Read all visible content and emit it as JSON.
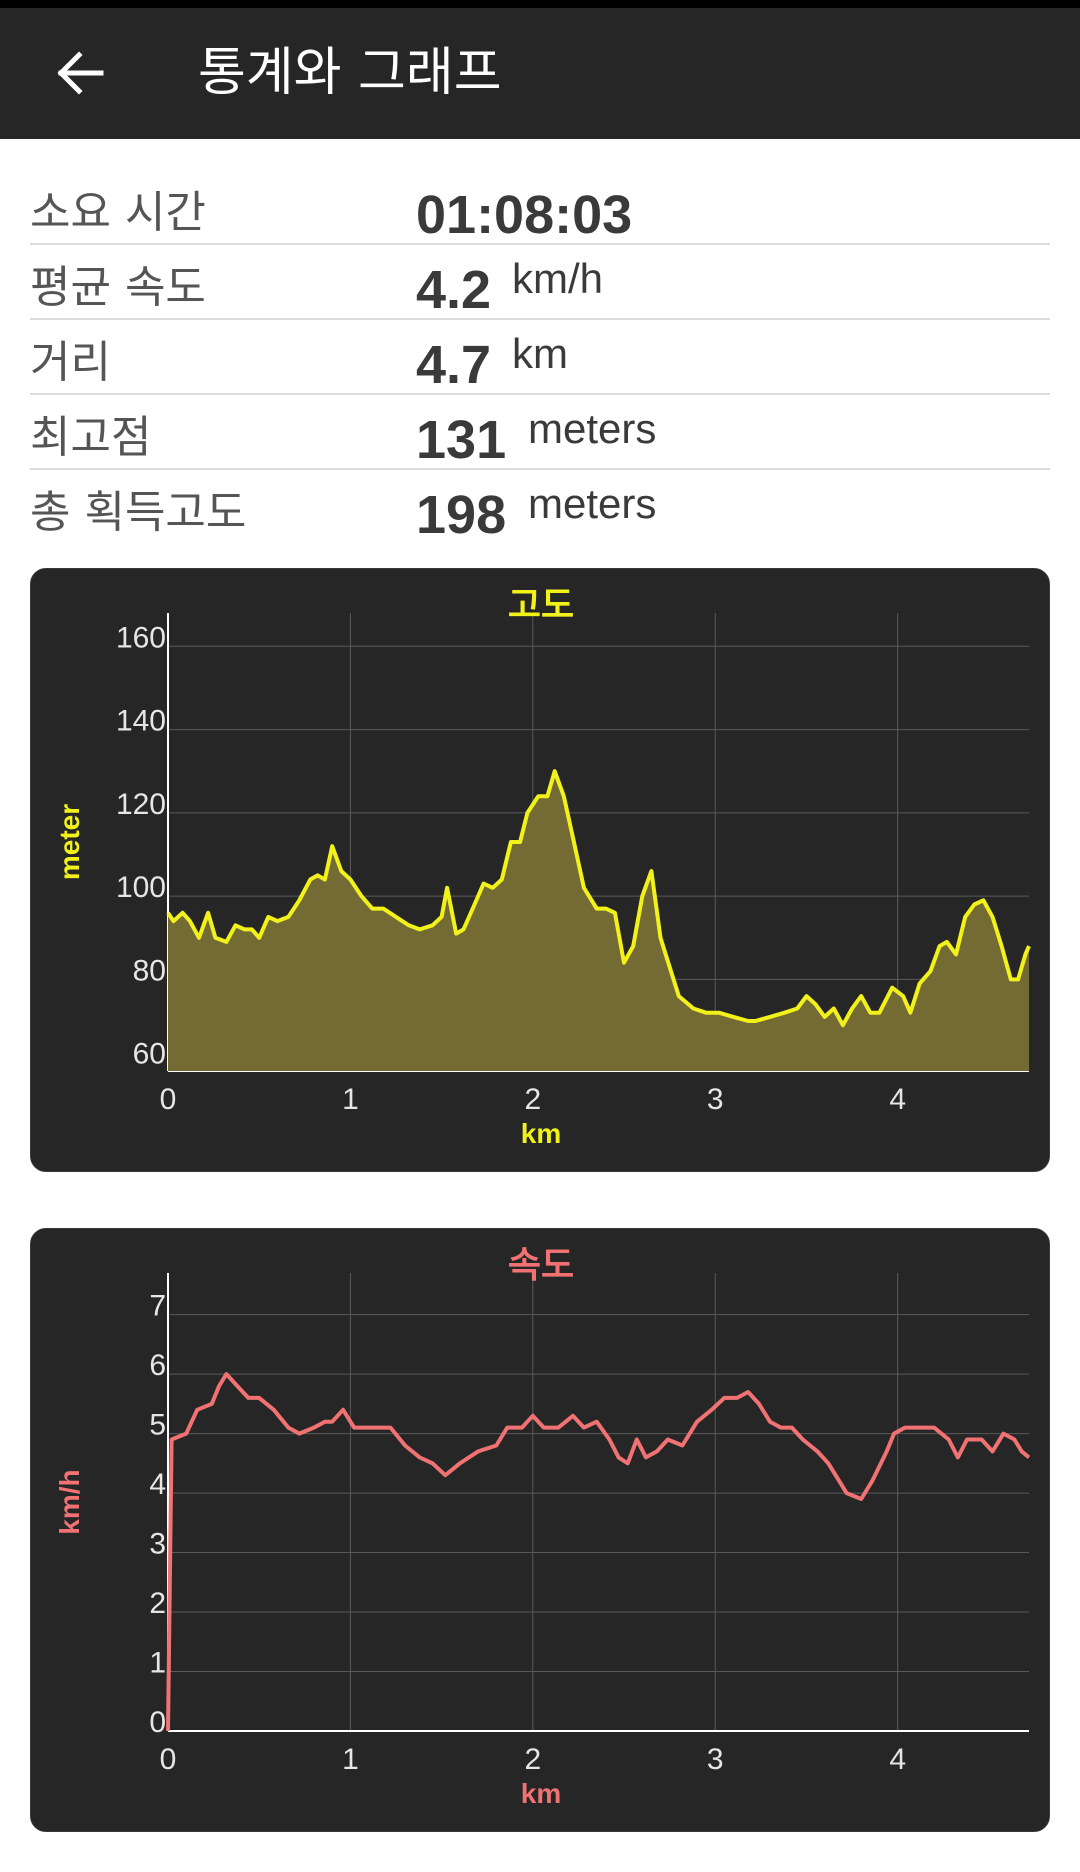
{
  "app_bar": {
    "title": "통계와 그래프"
  },
  "stats": [
    {
      "label": "소요 시간",
      "value": "01:08:03",
      "unit": ""
    },
    {
      "label": "평균 속도",
      "value": "4.2",
      "unit": "km/h"
    },
    {
      "label": "거리",
      "value": "4.7",
      "unit": "km"
    },
    {
      "label": "최고점",
      "value": "131",
      "unit": "meters"
    },
    {
      "label": "총 획득고도",
      "value": "198",
      "unit": "meters"
    }
  ],
  "colors": {
    "elevation": "#f2f21a",
    "elevation_fill": "#736b33",
    "speed": "#f07272",
    "card_bg": "#262626",
    "grid": "#5a5a5a"
  },
  "chart_data": [
    {
      "type": "area",
      "title": "고도",
      "xlabel": "km",
      "ylabel": "meter",
      "xlim": [
        0,
        4.72
      ],
      "ylim": [
        58,
        168
      ],
      "x_ticks": [
        0,
        1,
        2,
        3,
        4
      ],
      "y_ticks": [
        60,
        80,
        100,
        120,
        140,
        160
      ],
      "grid": true,
      "points": [
        [
          0,
          96
        ],
        [
          0.03,
          94
        ],
        [
          0.08,
          96
        ],
        [
          0.12,
          94
        ],
        [
          0.17,
          90
        ],
        [
          0.22,
          96
        ],
        [
          0.26,
          90
        ],
        [
          0.32,
          89
        ],
        [
          0.37,
          93
        ],
        [
          0.42,
          92
        ],
        [
          0.46,
          92
        ],
        [
          0.5,
          90
        ],
        [
          0.55,
          95
        ],
        [
          0.6,
          94
        ],
        [
          0.66,
          95
        ],
        [
          0.72,
          99
        ],
        [
          0.78,
          104
        ],
        [
          0.82,
          105
        ],
        [
          0.86,
          104
        ],
        [
          0.9,
          112
        ],
        [
          0.95,
          106
        ],
        [
          1.0,
          104
        ],
        [
          1.06,
          100
        ],
        [
          1.12,
          97
        ],
        [
          1.18,
          97
        ],
        [
          1.25,
          95
        ],
        [
          1.32,
          93
        ],
        [
          1.38,
          92
        ],
        [
          1.45,
          93
        ],
        [
          1.5,
          95
        ],
        [
          1.53,
          102
        ],
        [
          1.58,
          91
        ],
        [
          1.62,
          92
        ],
        [
          1.68,
          98
        ],
        [
          1.73,
          103
        ],
        [
          1.78,
          102
        ],
        [
          1.83,
          104
        ],
        [
          1.88,
          113
        ],
        [
          1.93,
          113
        ],
        [
          1.97,
          120
        ],
        [
          2.03,
          124
        ],
        [
          2.08,
          124
        ],
        [
          2.12,
          130
        ],
        [
          2.17,
          124
        ],
        [
          2.22,
          114
        ],
        [
          2.28,
          102
        ],
        [
          2.35,
          97
        ],
        [
          2.4,
          97
        ],
        [
          2.45,
          96
        ],
        [
          2.5,
          84
        ],
        [
          2.55,
          88
        ],
        [
          2.6,
          100
        ],
        [
          2.65,
          106
        ],
        [
          2.7,
          90
        ],
        [
          2.75,
          83
        ],
        [
          2.8,
          76
        ],
        [
          2.88,
          73
        ],
        [
          2.95,
          72
        ],
        [
          3.02,
          72
        ],
        [
          3.1,
          71
        ],
        [
          3.18,
          70
        ],
        [
          3.22,
          70
        ],
        [
          3.3,
          71
        ],
        [
          3.38,
          72
        ],
        [
          3.45,
          73
        ],
        [
          3.5,
          76
        ],
        [
          3.55,
          74
        ],
        [
          3.6,
          71
        ],
        [
          3.65,
          73
        ],
        [
          3.7,
          69
        ],
        [
          3.75,
          73
        ],
        [
          3.8,
          76
        ],
        [
          3.85,
          72
        ],
        [
          3.9,
          72
        ],
        [
          3.97,
          78
        ],
        [
          4.03,
          76
        ],
        [
          4.07,
          72
        ],
        [
          4.12,
          79
        ],
        [
          4.18,
          82
        ],
        [
          4.23,
          88
        ],
        [
          4.27,
          89
        ],
        [
          4.32,
          86
        ],
        [
          4.37,
          95
        ],
        [
          4.42,
          98
        ],
        [
          4.47,
          99
        ],
        [
          4.52,
          95
        ],
        [
          4.57,
          88
        ],
        [
          4.62,
          80
        ],
        [
          4.66,
          80
        ],
        [
          4.7,
          86
        ],
        [
          4.72,
          88
        ]
      ]
    },
    {
      "type": "line",
      "title": "속도",
      "xlabel": "km",
      "ylabel": "km/h",
      "xlim": [
        0,
        4.72
      ],
      "ylim": [
        0,
        7.7
      ],
      "x_ticks": [
        0,
        1,
        2,
        3,
        4
      ],
      "y_ticks": [
        0,
        1,
        2,
        3,
        4,
        5,
        6,
        7
      ],
      "grid": true,
      "points": [
        [
          0,
          0
        ],
        [
          0.02,
          4.9
        ],
        [
          0.1,
          5.0
        ],
        [
          0.16,
          5.4
        ],
        [
          0.24,
          5.5
        ],
        [
          0.28,
          5.8
        ],
        [
          0.32,
          6.0
        ],
        [
          0.38,
          5.8
        ],
        [
          0.44,
          5.6
        ],
        [
          0.5,
          5.6
        ],
        [
          0.58,
          5.4
        ],
        [
          0.66,
          5.1
        ],
        [
          0.72,
          5.0
        ],
        [
          0.8,
          5.1
        ],
        [
          0.86,
          5.2
        ],
        [
          0.9,
          5.2
        ],
        [
          0.96,
          5.4
        ],
        [
          1.02,
          5.1
        ],
        [
          1.08,
          5.1
        ],
        [
          1.15,
          5.1
        ],
        [
          1.22,
          5.1
        ],
        [
          1.3,
          4.8
        ],
        [
          1.38,
          4.6
        ],
        [
          1.45,
          4.5
        ],
        [
          1.52,
          4.3
        ],
        [
          1.6,
          4.5
        ],
        [
          1.7,
          4.7
        ],
        [
          1.8,
          4.8
        ],
        [
          1.86,
          5.1
        ],
        [
          1.94,
          5.1
        ],
        [
          2.0,
          5.3
        ],
        [
          2.06,
          5.1
        ],
        [
          2.14,
          5.1
        ],
        [
          2.22,
          5.3
        ],
        [
          2.28,
          5.1
        ],
        [
          2.35,
          5.2
        ],
        [
          2.42,
          4.9
        ],
        [
          2.47,
          4.6
        ],
        [
          2.52,
          4.5
        ],
        [
          2.57,
          4.9
        ],
        [
          2.62,
          4.6
        ],
        [
          2.68,
          4.7
        ],
        [
          2.74,
          4.9
        ],
        [
          2.82,
          4.8
        ],
        [
          2.9,
          5.2
        ],
        [
          2.98,
          5.4
        ],
        [
          3.05,
          5.6
        ],
        [
          3.12,
          5.6
        ],
        [
          3.18,
          5.7
        ],
        [
          3.24,
          5.5
        ],
        [
          3.3,
          5.2
        ],
        [
          3.36,
          5.1
        ],
        [
          3.42,
          5.1
        ],
        [
          3.48,
          4.9
        ],
        [
          3.56,
          4.7
        ],
        [
          3.62,
          4.5
        ],
        [
          3.68,
          4.2
        ],
        [
          3.72,
          4.0
        ],
        [
          3.8,
          3.9
        ],
        [
          3.86,
          4.2
        ],
        [
          3.94,
          4.7
        ],
        [
          3.98,
          5.0
        ],
        [
          4.04,
          5.1
        ],
        [
          4.12,
          5.1
        ],
        [
          4.2,
          5.1
        ],
        [
          4.28,
          4.9
        ],
        [
          4.33,
          4.6
        ],
        [
          4.38,
          4.9
        ],
        [
          4.46,
          4.9
        ],
        [
          4.52,
          4.7
        ],
        [
          4.58,
          5.0
        ],
        [
          4.64,
          4.9
        ],
        [
          4.68,
          4.7
        ],
        [
          4.72,
          4.6
        ]
      ]
    }
  ]
}
